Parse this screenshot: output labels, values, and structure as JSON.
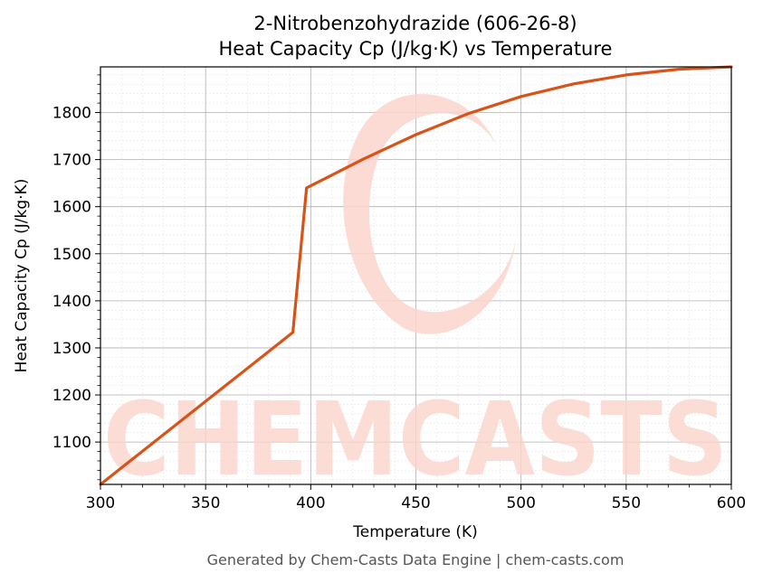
{
  "chart_data": {
    "type": "line",
    "title": "2-Nitrobenzohydrazide (606-26-8)",
    "subtitle": "Heat Capacity Cp (J/kg·K) vs Temperature",
    "xlabel": "Temperature (K)",
    "ylabel": "Heat Capacity Cp (J/kg·K)",
    "xlim": [
      300,
      600
    ],
    "ylim": [
      1010,
      1897
    ],
    "x_ticks": [
      300,
      350,
      400,
      450,
      500,
      550,
      600
    ],
    "y_ticks": [
      1100,
      1200,
      1300,
      1400,
      1500,
      1600,
      1700,
      1800
    ],
    "grid": true,
    "series": [
      {
        "color": "#d95319",
        "x": [
          300,
          391.5,
          398,
          410,
          425,
          450,
          475,
          500,
          525,
          550,
          575,
          600
        ],
        "y": [
          1010,
          1333,
          1640,
          1667,
          1701,
          1753,
          1798,
          1834,
          1861,
          1880,
          1892,
          1897
        ]
      }
    ]
  },
  "watermark": {
    "text": "CHEMCASTS",
    "color": "#fbd5cc"
  },
  "footer": "Generated by Chem-Casts Data Engine | chem-casts.com"
}
